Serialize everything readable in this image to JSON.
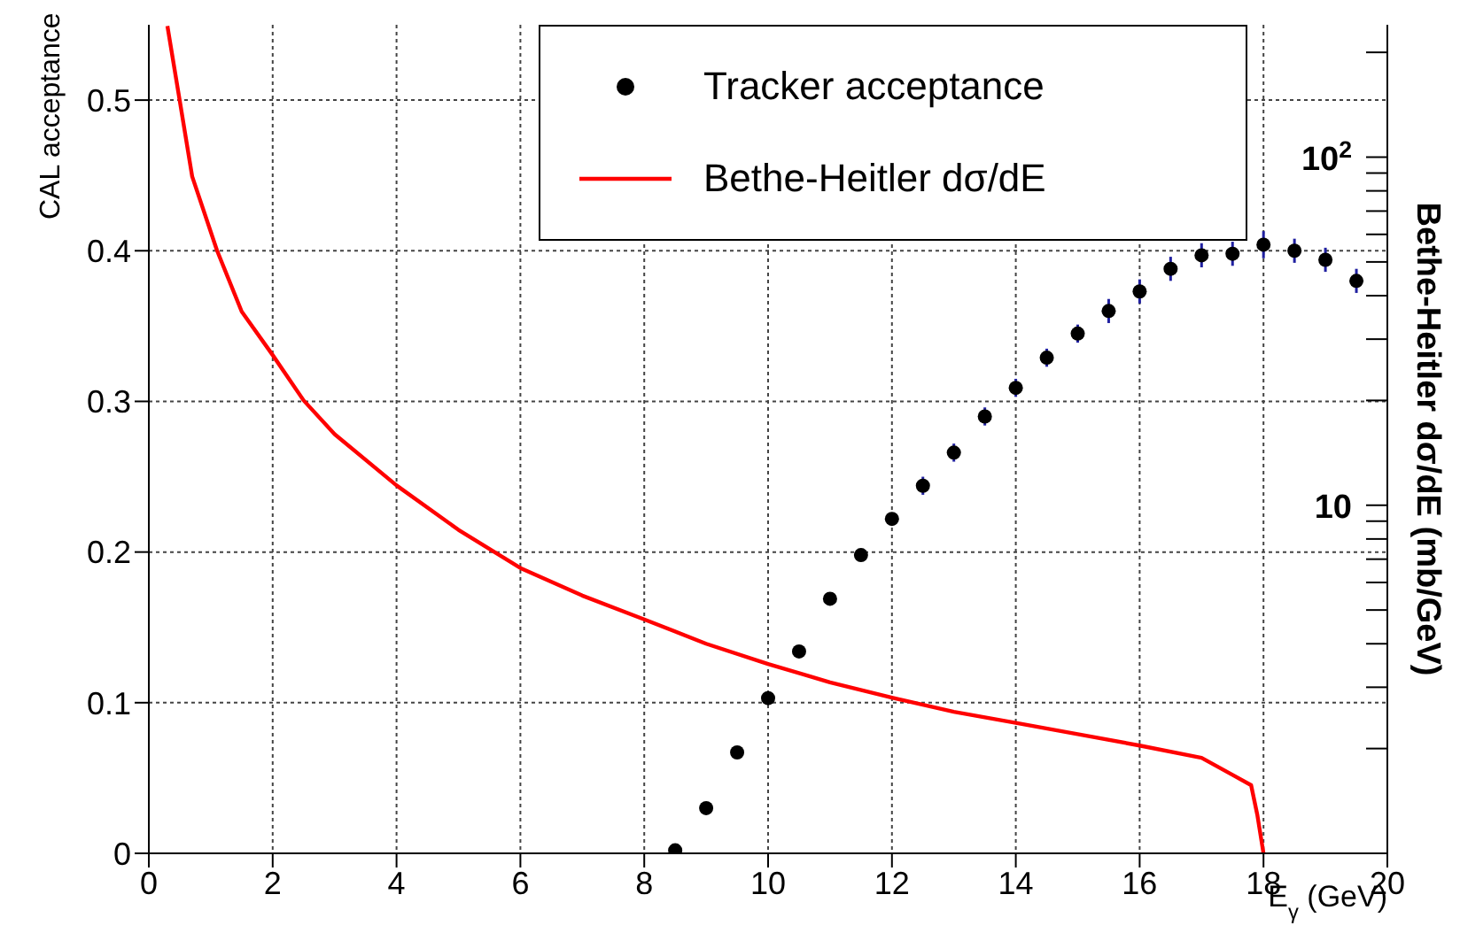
{
  "chart_data": {
    "type": "scatter",
    "xlabel": "E$_{γ}$ (GeV)",
    "ylabel": "CAL acceptance",
    "y2label": "Bethe-Heitler dσ/dE (mb/GeV)",
    "xlim": [
      0,
      20
    ],
    "xticks": [
      0,
      2,
      4,
      6,
      8,
      10,
      12,
      14,
      16,
      18,
      20
    ],
    "ylim": [
      0,
      0.55
    ],
    "yticks": [
      0,
      0.1,
      0.2,
      0.3,
      0.4,
      0.5
    ],
    "y2lim": [
      1,
      240
    ],
    "y2ticks": [
      {
        "value": 2,
        "label": null
      },
      {
        "value": 3,
        "label": null
      },
      {
        "value": 4,
        "label": null
      },
      {
        "value": 5,
        "label": null
      },
      {
        "value": 6,
        "label": null
      },
      {
        "value": 7,
        "label": null
      },
      {
        "value": 8,
        "label": null
      },
      {
        "value": 9,
        "label": null
      },
      10,
      {
        "value": 20,
        "label": null
      },
      {
        "value": 30,
        "label": null
      },
      {
        "value": 40,
        "label": null
      },
      {
        "value": 50,
        "label": null
      },
      {
        "value": 60,
        "label": null
      },
      {
        "value": 70,
        "label": null
      },
      {
        "value": 80,
        "label": null
      },
      {
        "value": 90,
        "label": null
      },
      {
        "value": 100,
        "label": "10$^{2}$"
      },
      {
        "value": 200,
        "label": null
      }
    ],
    "log": "y2",
    "grid": true,
    "legend": "top",
    "series": [
      {
        "name": "Tracker acceptance",
        "marker": "circle",
        "color": "#000000",
        "x": [
          8.5,
          9,
          9.5,
          10,
          10.5,
          11,
          11.5,
          12,
          12.5,
          13,
          13.5,
          14,
          14.5,
          15,
          15.5,
          16,
          16.5,
          17,
          17.5,
          18,
          18.5,
          19,
          19.5
        ],
        "values": [
          0.002,
          0.03,
          0.067,
          0.103,
          0.134,
          0.169,
          0.198,
          0.222,
          0.244,
          0.266,
          0.29,
          0.309,
          0.329,
          0.345,
          0.36,
          0.373,
          0.388,
          0.397,
          0.398,
          0.404,
          0.4,
          0.394,
          0.38
        ],
        "errors": [
          null,
          null,
          null,
          null,
          null,
          null,
          null,
          null,
          0.006,
          0.006,
          0.006,
          0.006,
          0.006,
          0.006,
          0.008,
          0.008,
          0.008,
          0.008,
          0.008,
          0.009,
          0.008,
          0.008,
          0.008
        ]
      },
      {
        "name": "Bethe-Heitler dσ/dE",
        "type": "line",
        "axis": "y2",
        "marker": "none",
        "line_style": "solid",
        "color": "#ff0000",
        "x": [
          0.3,
          0.5,
          0.7,
          1.1,
          1.5,
          2,
          2.5,
          3,
          4,
          5,
          6,
          7,
          8,
          9,
          10,
          11,
          12,
          13,
          14,
          15,
          16,
          17,
          17.5,
          17.8,
          17.9,
          18
        ],
        "values": [
          238,
          145,
          88,
          54,
          36,
          27,
          20,
          16,
          11.4,
          8.5,
          6.6,
          5.5,
          4.7,
          4.0,
          3.5,
          3.1,
          2.8,
          2.55,
          2.37,
          2.2,
          2.04,
          1.88,
          1.68,
          1.57,
          1.29,
          1
        ]
      }
    ]
  }
}
